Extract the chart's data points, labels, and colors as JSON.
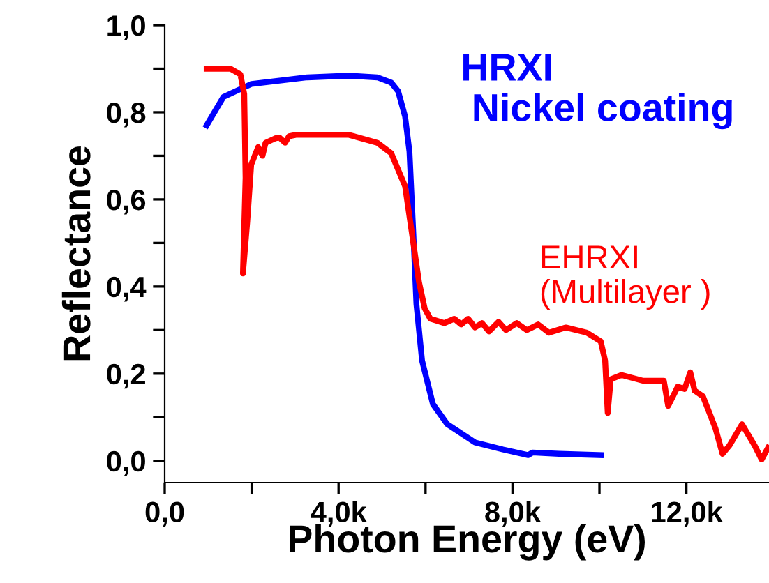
{
  "chart_data": {
    "type": "line",
    "xlabel": "Photon Energy (eV)",
    "ylabel": "Reflectance",
    "xlim": [
      0,
      13900
    ],
    "ylim": [
      -0.05,
      1.0
    ],
    "xticks": [
      {
        "value": 0,
        "label": "0,0"
      },
      {
        "value": 2000,
        "label": null
      },
      {
        "value": 4000,
        "label": "4,0k"
      },
      {
        "value": 6000,
        "label": null
      },
      {
        "value": 8000,
        "label": "8,0k"
      },
      {
        "value": 10000,
        "label": null
      },
      {
        "value": 12000,
        "label": "12,0k"
      }
    ],
    "yticks": [
      {
        "value": 0,
        "label": "0,0"
      },
      {
        "value": 0.1,
        "label": null
      },
      {
        "value": 0.2,
        "label": "0,2"
      },
      {
        "value": 0.3,
        "label": null
      },
      {
        "value": 0.4,
        "label": "0,4"
      },
      {
        "value": 0.5,
        "label": null
      },
      {
        "value": 0.6,
        "label": "0,6"
      },
      {
        "value": 0.7,
        "label": null
      },
      {
        "value": 0.8,
        "label": "0,8"
      },
      {
        "value": 0.9,
        "label": null
      },
      {
        "value": 1.0,
        "label": "1,0"
      }
    ],
    "grid": false,
    "legend": false,
    "marker": "none",
    "line_style": "solid",
    "series": [
      {
        "name": "HRXI\n Nickel coating",
        "color": "#0000ff",
        "x": [
          965,
          1350,
          2000,
          3280,
          4240,
          4890,
          5210,
          5370,
          5530,
          5630,
          5720,
          5790,
          5920,
          6170,
          6500,
          7140,
          7780,
          8360,
          8460,
          9070,
          10030
        ],
        "values": [
          0.77,
          0.835,
          0.865,
          0.88,
          0.884,
          0.88,
          0.868,
          0.848,
          0.79,
          0.71,
          0.52,
          0.36,
          0.23,
          0.13,
          0.084,
          0.042,
          0.026,
          0.013,
          0.019,
          0.016,
          0.013
        ]
      },
      {
        "name": "EHRXI\n(Multilayer )",
        "color": "#ff0000",
        "x": [
          965,
          1510,
          1740,
          1830,
          1860,
          1800,
          1900,
          1990,
          2150,
          2250,
          2320,
          2540,
          2640,
          2770,
          2860,
          3020,
          4240,
          4890,
          5210,
          5530,
          5690,
          5850,
          5980,
          6110,
          6430,
          6660,
          6820,
          6980,
          7140,
          7300,
          7460,
          7680,
          7850,
          8100,
          8330,
          8590,
          8840,
          9230,
          9710,
          10030,
          10130,
          10190,
          10260,
          10510,
          10990,
          11480,
          11580,
          11800,
          11960,
          12090,
          12190,
          12380,
          12670,
          12830,
          12990,
          13280,
          13570,
          13730,
          13880
        ],
        "values": [
          0.9,
          0.9,
          0.887,
          0.842,
          0.65,
          0.43,
          0.55,
          0.68,
          0.72,
          0.7,
          0.73,
          0.74,
          0.742,
          0.73,
          0.745,
          0.748,
          0.748,
          0.73,
          0.706,
          0.63,
          0.52,
          0.41,
          0.35,
          0.326,
          0.316,
          0.326,
          0.313,
          0.326,
          0.306,
          0.316,
          0.297,
          0.319,
          0.3,
          0.316,
          0.3,
          0.313,
          0.294,
          0.306,
          0.294,
          0.274,
          0.23,
          0.11,
          0.187,
          0.197,
          0.184,
          0.184,
          0.126,
          0.17,
          0.165,
          0.203,
          0.161,
          0.148,
          0.074,
          0.016,
          0.035,
          0.084,
          0.035,
          0.003,
          0.03
        ]
      }
    ]
  }
}
